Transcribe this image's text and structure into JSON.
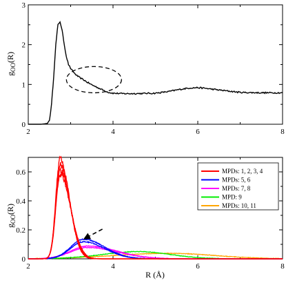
{
  "chart_data": [
    {
      "type": "line",
      "panel": "top",
      "xlim": [
        2,
        8
      ],
      "ylim": [
        0,
        3
      ],
      "x_ticks": [
        2,
        4,
        6,
        8
      ],
      "y_ticks": [
        0,
        1,
        2,
        3
      ],
      "x_tick_labels": [
        "2",
        "4",
        "6",
        "8"
      ],
      "y_tick_labels": [
        "0",
        "1",
        "2",
        "3"
      ],
      "ylabel": {
        "main": "g",
        "sub": "OO",
        "tail": "(R)"
      },
      "xlabel": "",
      "grid": false,
      "series": [
        {
          "color": "#000000",
          "x": [
            2.0,
            2.3,
            2.45,
            2.5,
            2.55,
            2.6,
            2.65,
            2.7,
            2.75,
            2.8,
            2.85,
            2.9,
            2.95,
            3.0,
            3.05,
            3.1,
            3.15,
            3.2,
            3.3,
            3.4,
            3.5,
            3.6,
            3.7,
            3.8,
            3.9,
            4.0,
            4.2,
            4.5,
            5.0,
            5.3,
            5.6,
            5.8,
            6.0,
            6.2,
            6.5,
            7.0,
            7.5,
            8.0
          ],
          "y": [
            0.0,
            0.0,
            0.02,
            0.1,
            0.5,
            1.2,
            2.0,
            2.5,
            2.58,
            2.35,
            2.0,
            1.7,
            1.5,
            1.4,
            1.33,
            1.27,
            1.22,
            1.18,
            1.12,
            1.05,
            0.99,
            0.94,
            0.89,
            0.84,
            0.8,
            0.78,
            0.77,
            0.77,
            0.78,
            0.82,
            0.88,
            0.91,
            0.92,
            0.9,
            0.86,
            0.8,
            0.79,
            0.79
          ]
        }
      ],
      "annotations": [
        {
          "type": "dashed-ellipse",
          "cx": 3.55,
          "cy": 1.12,
          "rx": 0.65,
          "ry": 0.33
        }
      ]
    },
    {
      "type": "line",
      "panel": "bottom",
      "xlim": [
        2,
        8
      ],
      "ylim": [
        0,
        0.7
      ],
      "x_ticks": [
        2,
        4,
        6,
        8
      ],
      "y_ticks": [
        0,
        0.2,
        0.4,
        0.6
      ],
      "x_tick_labels": [
        "2",
        "4",
        "6",
        "8"
      ],
      "y_tick_labels": [
        "0",
        "0.2",
        "0.4",
        "0.6"
      ],
      "xlabel": "R (Å)",
      "ylabel": {
        "main": "g",
        "sub": "OO",
        "tail": "(R)"
      },
      "grid": false,
      "legend_position": "top-right",
      "series": [
        {
          "name": "MPDs: 1, 2, 3, 4",
          "color": "#ff0000",
          "peak": 2.75,
          "height": 0.69,
          "sl": 0.1,
          "sr": 0.22
        },
        {
          "name": "MPDs: 1, 2, 3, 4",
          "color": "#ff0000",
          "peak": 2.75,
          "height": 0.65,
          "sl": 0.1,
          "sr": 0.23
        },
        {
          "name": "MPDs: 1, 2, 3, 4",
          "color": "#ff0000",
          "peak": 2.75,
          "height": 0.61,
          "sl": 0.1,
          "sr": 0.24
        },
        {
          "name": "MPDs: 1, 2, 3, 4",
          "color": "#ff0000",
          "peak": 2.75,
          "height": 0.58,
          "sl": 0.1,
          "sr": 0.25
        },
        {
          "name": "MPDs: 5, 6",
          "color": "#0000ff",
          "peak": 3.3,
          "height": 0.135,
          "sl": 0.3,
          "sr": 0.5
        },
        {
          "name": "MPDs: 5, 6",
          "color": "#0000ff",
          "peak": 3.3,
          "height": 0.118,
          "sl": 0.3,
          "sr": 0.5
        },
        {
          "name": "MPDs: 7, 8",
          "color": "#ff00ff",
          "peak": 3.4,
          "height": 0.088,
          "sl": 0.4,
          "sr": 0.7
        },
        {
          "name": "MPDs: 7, 8",
          "color": "#ff00ff",
          "peak": 3.4,
          "height": 0.078,
          "sl": 0.4,
          "sr": 0.7
        },
        {
          "name": "MPD: 9",
          "color": "#00ee00",
          "peak": 4.6,
          "height": 0.05,
          "sl": 0.85,
          "sr": 0.75
        },
        {
          "name": "MPDs: 10, 11",
          "color": "#ffa500",
          "peak": 5.3,
          "height": 0.038,
          "sl": 1.3,
          "sr": 1.1
        }
      ],
      "legend": [
        {
          "label": "MPDs: 1, 2, 3, 4",
          "color": "#ff0000"
        },
        {
          "label": "MPDs: 5, 6",
          "color": "#0000ff"
        },
        {
          "label": "MPDs: 7, 8",
          "color": "#ff00ff"
        },
        {
          "label": "MPD: 9",
          "color": "#00ee00"
        },
        {
          "label": "MPDs: 10, 11",
          "color": "#ffa500"
        }
      ],
      "annotations": [
        {
          "type": "dashed-arrow",
          "from": [
            3.75,
            0.205
          ],
          "to": [
            3.3,
            0.135
          ]
        }
      ]
    }
  ]
}
